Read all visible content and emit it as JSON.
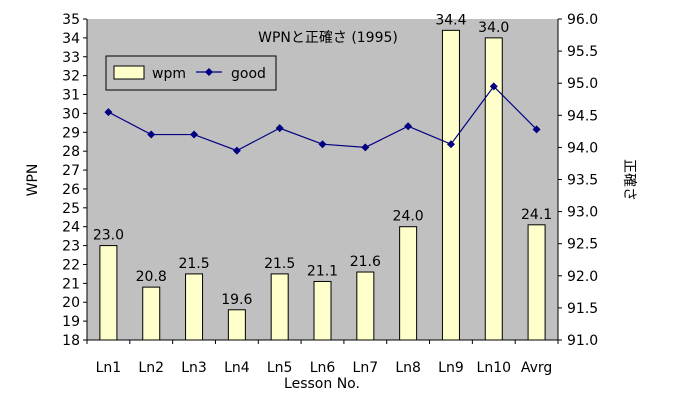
{
  "chart_data": {
    "type": "bar",
    "title": "WPNと正確さ (1995)",
    "xlabel": "Lesson No.",
    "ylabel": "WPN",
    "y2label": "正確さ",
    "categories": [
      "Ln1",
      "Ln2",
      "Ln3",
      "Ln4",
      "Ln5",
      "Ln6",
      "Ln7",
      "Ln8",
      "Ln9",
      "Ln10",
      "Avrg"
    ],
    "ylim": [
      18,
      35
    ],
    "y2lim": [
      91.0,
      96.0
    ],
    "series": [
      {
        "name": "wpm",
        "type": "bar",
        "axis": "left",
        "values": [
          23.0,
          20.8,
          21.5,
          19.6,
          21.5,
          21.1,
          21.6,
          24.0,
          34.4,
          34.0,
          24.1
        ],
        "labels": [
          "23.0",
          "20.8",
          "21.5",
          "19.6",
          "21.5",
          "21.1",
          "21.6",
          "24.0",
          "34.4",
          "34.0",
          "24.1"
        ]
      },
      {
        "name": "good",
        "type": "line",
        "axis": "right",
        "values": [
          94.55,
          94.2,
          94.2,
          93.95,
          94.3,
          94.05,
          94.0,
          94.33,
          94.05,
          94.95,
          94.28
        ]
      }
    ],
    "grid": false,
    "legend_position": "top-left",
    "plot_background": "#c0c0c0",
    "bar_color": "#ffffcc",
    "line_color": "#000080"
  }
}
